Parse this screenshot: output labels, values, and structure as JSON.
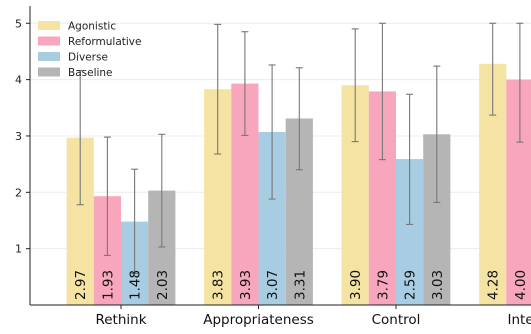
{
  "chart_data": {
    "type": "bar",
    "categories": [
      "Rethink",
      "Appropriateness",
      "Control",
      "Interest"
    ],
    "series": [
      {
        "name": "Agonistic",
        "color": "#f5e3a4",
        "values": [
          2.97,
          3.83,
          3.9,
          4.28
        ],
        "err_low": [
          1.78,
          2.68,
          2.9,
          3.37
        ],
        "err_high": [
          4.16,
          4.98,
          4.9,
          5.0
        ]
      },
      {
        "name": "Reformulative",
        "color": "#f7a6bc",
        "values": [
          1.93,
          3.93,
          3.79,
          4.0
        ],
        "err_low": [
          0.88,
          3.01,
          2.58,
          2.89
        ],
        "err_high": [
          2.98,
          4.85,
          5.0,
          5.0
        ]
      },
      {
        "name": "Diverse",
        "color": "#a8cde2",
        "values": [
          1.48,
          3.07,
          2.59,
          null
        ],
        "err_low": [
          0.56,
          1.88,
          1.43,
          null
        ],
        "err_high": [
          2.41,
          4.26,
          3.74,
          null
        ]
      },
      {
        "name": "Baseline",
        "color": "#b5b5b5",
        "values": [
          2.03,
          3.31,
          3.03,
          null
        ],
        "err_low": [
          1.03,
          2.4,
          1.82,
          null
        ],
        "err_high": [
          3.03,
          4.21,
          4.24,
          null
        ]
      }
    ],
    "value_labels": [
      [
        "2.97",
        "3.83",
        "3.90",
        "4.28"
      ],
      [
        "1.93",
        "3.93",
        "3.79",
        "4.00"
      ],
      [
        "1.48",
        "3.07",
        "2.59",
        null
      ],
      [
        "2.03",
        "3.31",
        "3.03",
        null
      ]
    ],
    "y_ticks": [
      1,
      2,
      3,
      4,
      5
    ],
    "ylim": [
      0,
      5.2
    ],
    "grid": "horizontal",
    "legend_position": "top-left",
    "error_bar_color": "#777777",
    "title": "",
    "xlabel": "",
    "ylabel": ""
  }
}
